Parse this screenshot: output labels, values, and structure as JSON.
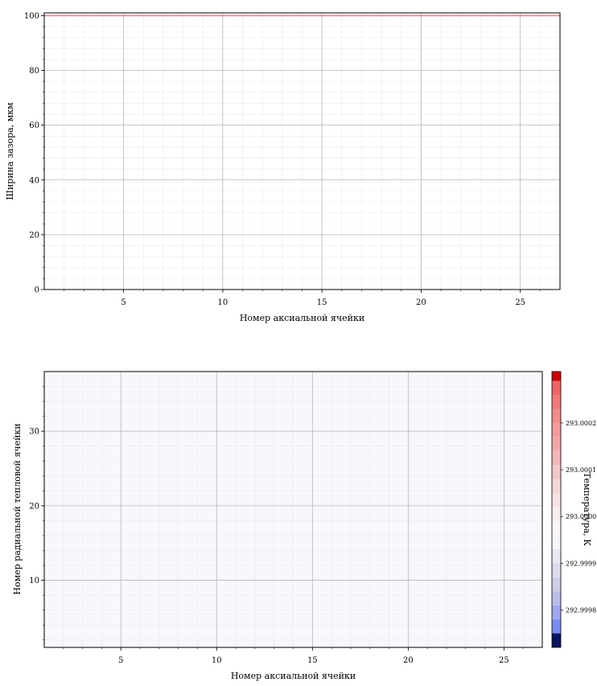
{
  "chart_data": [
    {
      "type": "line",
      "xlabel": "Номер аксиальной ячейки",
      "ylabel": "Ширина зазора, мкм",
      "xlim": [
        1,
        27
      ],
      "ylim": [
        0,
        101
      ],
      "xticks": [
        5,
        10,
        15,
        20,
        25
      ],
      "yticks": [
        0,
        20,
        40,
        60,
        80,
        100
      ],
      "grid": true,
      "series": [
        {
          "color": "#f08080",
          "x": [
            1,
            27
          ],
          "y": [
            100,
            100
          ]
        }
      ]
    },
    {
      "type": "heatmap",
      "xlabel": "Номер аксиальной ячейки",
      "ylabel": "Номер радиальной тепловой ячейки",
      "xlim": [
        1,
        27
      ],
      "ylim": [
        1,
        38
      ],
      "xticks": [
        5,
        10,
        15,
        20,
        25
      ],
      "yticks": [
        10,
        20,
        30
      ],
      "grid": true,
      "field_value": 292.99998,
      "field_color": "#f7f7fc",
      "colorbar": {
        "label": "Температура, К",
        "ticks": [
          "293.0002",
          "293.0001",
          "293.0000",
          "292.9999",
          "292.9998"
        ],
        "tick_values": [
          293.0002,
          293.0001,
          293.0,
          292.9999,
          292.9998
        ],
        "min": 292.99972,
        "max": 293.00031,
        "levels": [
          292.99972,
          292.99975,
          292.99978,
          292.99981,
          292.99984,
          292.99987,
          292.9999,
          292.99993,
          292.99996,
          292.99999,
          293.00002,
          293.00005,
          293.00008,
          293.00011,
          293.00014,
          293.00017,
          293.0002,
          293.00023,
          293.00026,
          293.00029,
          293.00031
        ],
        "colors": [
          "#0b1560",
          "#7b8cf0",
          "#9ea8ee",
          "#b9bde8",
          "#cdcfe6",
          "#dcdcec",
          "#e9e9f3",
          "#f6f6fa",
          "#fbf6f6",
          "#f8eeee",
          "#f5e3e3",
          "#f3d6d6",
          "#f2c7c7",
          "#f2b8b8",
          "#f2a8a8",
          "#f29b9b",
          "#f28b8b",
          "#f07878",
          "#ee6464",
          "#cc0000"
        ]
      }
    }
  ]
}
